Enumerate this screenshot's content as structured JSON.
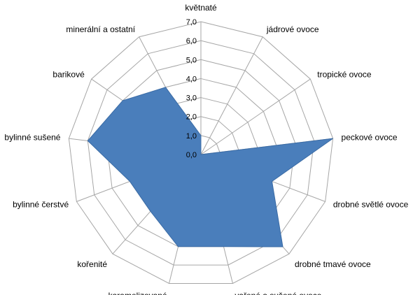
{
  "chart_data": {
    "type": "radar",
    "categories": [
      "květnaté",
      "jádrové ovoce",
      "tropické ovoce",
      "peckové ovoce",
      "drobné světlé ovoce",
      "drobné tmavé ovoce",
      "vařené a sušené ovoce",
      "karamelizované",
      "kořenité",
      "bylinné čerstvé",
      "bylinné sušené",
      "barikové",
      "minerální a ostatní"
    ],
    "series": [
      {
        "values": [
          1.0,
          0.0,
          0.0,
          7.0,
          4.0,
          6.5,
          5.0,
          5.0,
          4.0,
          4.0,
          6.0,
          5.0,
          4.0
        ]
      }
    ],
    "rlim": [
      0,
      7
    ],
    "ticks": [
      "0,0",
      "1,0",
      "2,0",
      "3,0",
      "4,0",
      "5,0",
      "6,0",
      "7,0"
    ],
    "grid": true,
    "legend": "none",
    "colors": {
      "fill": "#4a7ebb",
      "grid": "#a6a6a6"
    }
  }
}
